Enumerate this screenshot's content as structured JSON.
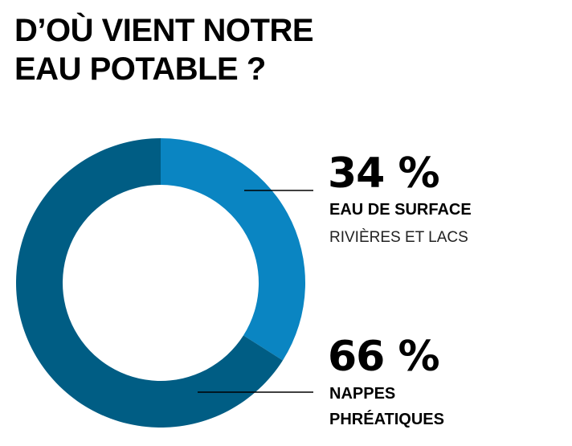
{
  "title": {
    "line1": "D’OÙ VIENT NOTRE",
    "line2": "EAU POTABLE ?"
  },
  "chart_data": {
    "type": "pie",
    "donut": true,
    "categories": [
      "EAU DE SURFACE",
      "NAPPES PHRÉATIQUES"
    ],
    "values": [
      34,
      66
    ],
    "colors": [
      "#0a85c2",
      "#005d84"
    ],
    "slices": [
      {
        "value": 34,
        "value_label": "34 %",
        "label": "EAU DE SURFACE",
        "sublabel": "RIVIÈRES ET LACS",
        "color": "#0a85c2"
      },
      {
        "value": 66,
        "value_label": "66 %",
        "label_line1": "NAPPES",
        "label_line2": "PHRÉATIQUES",
        "color": "#005d84"
      }
    ]
  }
}
